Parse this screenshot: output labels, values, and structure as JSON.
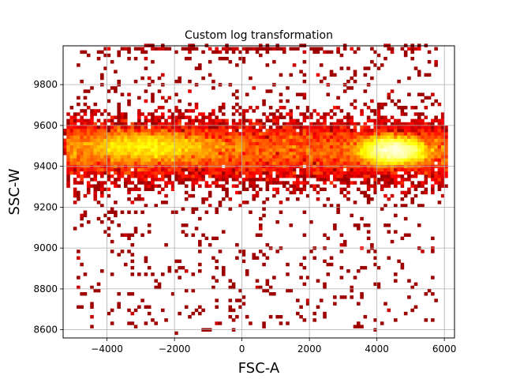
{
  "chart_data": {
    "type": "heatmap",
    "title": "Custom log transformation",
    "xlabel": "FSC-A",
    "ylabel": "SSC-W",
    "xlim": [
      -5300,
      6300
    ],
    "ylim": [
      8560,
      9990
    ],
    "xticks": [
      -4000,
      -2000,
      0,
      2000,
      4000,
      6000
    ],
    "yticks": [
      8600,
      8800,
      9000,
      9200,
      9400,
      9600,
      9800
    ],
    "grid": true,
    "colormap": "hot",
    "bin_size": {
      "x": 100,
      "y": 16
    },
    "density_summary": {
      "core_band_y_center": 9480,
      "dense_cluster_center": [
        4500,
        9480
      ],
      "secondary_dense_region": [
        -2800,
        9500
      ],
      "sparse_tail_min_y": 8565
    }
  }
}
